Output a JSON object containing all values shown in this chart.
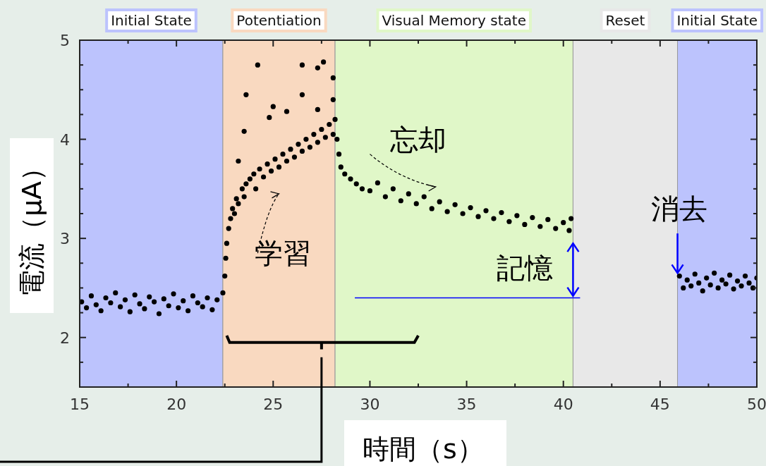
{
  "chart_data": {
    "type": "scatter",
    "xlabel": "時間（s）",
    "ylabel": "電流（μA）",
    "xlim": [
      15,
      50
    ],
    "ylim": [
      1.5,
      5
    ],
    "xticks": [
      15,
      {
        "value": 17.5,
        "label": null
      },
      20,
      {
        "value": 22.5,
        "label": null
      },
      25,
      {
        "value": 27.5,
        "label": null
      },
      30,
      {
        "value": 32.5,
        "label": null
      },
      35,
      {
        "value": 37.5,
        "label": null
      },
      40,
      {
        "value": 42.5,
        "label": null
      },
      45,
      {
        "value": 47.5,
        "label": null
      },
      50
    ],
    "yticks": [
      {
        "value": 1.75,
        "label": null
      },
      2,
      {
        "value": 2.25,
        "label": null
      },
      {
        "value": 2.5,
        "label": null
      },
      {
        "value": 2.75,
        "label": null
      },
      3,
      {
        "value": 3.25,
        "label": null
      },
      {
        "value": 3.5,
        "label": null
      },
      {
        "value": 3.75,
        "label": null
      },
      4,
      {
        "value": 4.25,
        "label": null
      },
      {
        "value": 4.5,
        "label": null
      },
      {
        "value": 4.75,
        "label": null
      },
      5
    ],
    "marker": "circle",
    "color": "#000000",
    "x": [
      15.1,
      15.35,
      15.6,
      15.85,
      16.1,
      16.35,
      16.6,
      16.85,
      17.1,
      17.35,
      17.6,
      17.85,
      18.1,
      18.35,
      18.6,
      18.85,
      19.1,
      19.35,
      19.6,
      19.85,
      20.1,
      20.35,
      20.6,
      20.85,
      21.1,
      21.35,
      21.6,
      21.85,
      22.1,
      22.4,
      22.5,
      22.55,
      22.6,
      22.7,
      22.8,
      22.9,
      23.0,
      23.1,
      23.2,
      23.4,
      23.5,
      23.6,
      23.8,
      24.0,
      24.1,
      24.3,
      24.5,
      24.7,
      24.9,
      25.1,
      25.3,
      25.5,
      25.7,
      25.9,
      26.1,
      26.3,
      26.5,
      26.7,
      26.9,
      27.1,
      27.3,
      27.5,
      27.7,
      27.9,
      28.1,
      28.2,
      23.2,
      23.5,
      23.6,
      24.2,
      24.8,
      25.0,
      25.7,
      26.5,
      26.5,
      27.3,
      27.3,
      27.6,
      28.1,
      28.1,
      28.3,
      28.4,
      28.5,
      28.7,
      29.0,
      29.3,
      29.6,
      30.0,
      30.4,
      30.8,
      31.2,
      31.6,
      32.0,
      32.4,
      32.8,
      33.2,
      33.6,
      34.0,
      34.4,
      34.8,
      35.2,
      35.6,
      36.0,
      36.4,
      36.8,
      37.2,
      37.6,
      38.0,
      38.4,
      38.8,
      39.2,
      39.6,
      40.0,
      40.3,
      40.4,
      46.0,
      46.2,
      46.4,
      46.6,
      46.8,
      47.0,
      47.2,
      47.4,
      47.6,
      47.8,
      48.0,
      48.2,
      48.4,
      48.6,
      48.8,
      49.0,
      49.2,
      49.4,
      49.6,
      49.8,
      50.0
    ],
    "values": [
      2.36,
      2.3,
      2.42,
      2.33,
      2.27,
      2.4,
      2.35,
      2.45,
      2.31,
      2.38,
      2.26,
      2.43,
      2.34,
      2.29,
      2.41,
      2.36,
      2.24,
      2.39,
      2.32,
      2.44,
      2.3,
      2.37,
      2.27,
      2.42,
      2.35,
      2.31,
      2.4,
      2.28,
      2.38,
      2.45,
      2.62,
      2.8,
      2.95,
      3.1,
      3.2,
      3.3,
      3.25,
      3.4,
      3.35,
      3.5,
      3.42,
      3.55,
      3.6,
      3.65,
      3.5,
      3.7,
      3.62,
      3.75,
      3.68,
      3.8,
      3.72,
      3.85,
      3.78,
      3.9,
      3.82,
      3.95,
      3.88,
      4.0,
      3.92,
      4.05,
      3.97,
      4.1,
      4.02,
      4.15,
      4.05,
      4.2,
      3.78,
      4.08,
      4.45,
      4.75,
      4.22,
      4.33,
      4.28,
      4.45,
      4.75,
      4.3,
      4.72,
      4.78,
      4.4,
      4.62,
      4.0,
      3.85,
      3.72,
      3.65,
      3.6,
      3.55,
      3.5,
      3.48,
      3.56,
      3.42,
      3.5,
      3.38,
      3.45,
      3.35,
      3.42,
      3.3,
      3.37,
      3.27,
      3.34,
      3.25,
      3.31,
      3.22,
      3.28,
      3.2,
      3.26,
      3.17,
      3.23,
      3.14,
      3.21,
      3.12,
      3.19,
      3.1,
      3.16,
      3.08,
      3.2,
      2.62,
      2.5,
      2.58,
      2.52,
      2.64,
      2.55,
      2.47,
      2.6,
      2.53,
      2.65,
      2.5,
      2.58,
      2.54,
      2.63,
      2.49,
      2.57,
      2.52,
      2.62,
      2.55,
      2.5,
      2.6
    ],
    "bands": [
      {
        "axis": "x",
        "from": 15,
        "to": 22.4,
        "label": "Initial State",
        "color": "#bcc3fd"
      },
      {
        "axis": "x",
        "from": 22.4,
        "to": 28.2,
        "label": "Potentiation",
        "color": "#f9d9c0"
      },
      {
        "axis": "x",
        "from": 28.2,
        "to": 40.5,
        "label": "Visual Memory state",
        "color": "#e0f7c8"
      },
      {
        "axis": "x",
        "from": 40.5,
        "to": 45.9,
        "label": "Reset",
        "color": "#e8e8e8"
      },
      {
        "axis": "x",
        "from": 45.9,
        "to": 50,
        "label": "Initial State",
        "color": "#bcc3fd"
      }
    ],
    "ref_lines": [
      {
        "axis": "y",
        "value": 2.4,
        "color": "#0000ff"
      }
    ],
    "annotations": [
      "学習",
      "忘却",
      "記憶",
      {
        "text": "消去",
        "x": 45.9,
        "y": 2.62
      }
    ]
  }
}
